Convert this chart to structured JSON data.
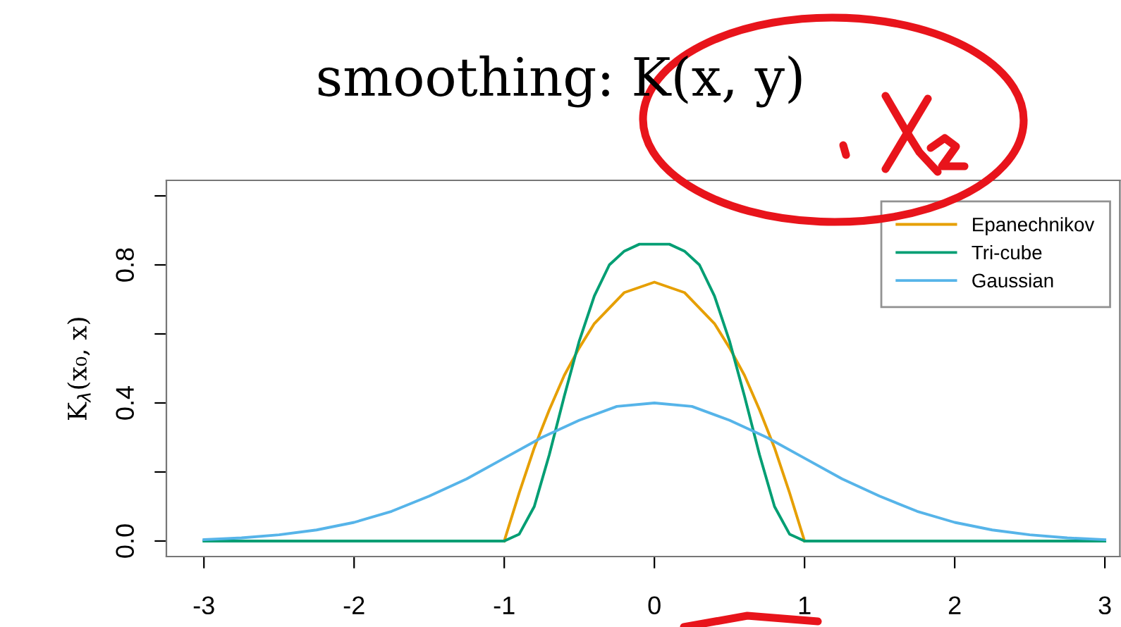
{
  "chart_data": {
    "type": "line",
    "title": "smoothing: K(x, y)",
    "ylabel": "K$_{λ}$(x₀, x)",
    "xlim": [
      -3.25,
      3.1
    ],
    "xticks": [
      -3,
      -2,
      -1,
      0,
      1,
      2,
      3
    ],
    "ylim": [
      -0.045,
      1.045
    ],
    "yticks": [
      {
        "value": 0,
        "label": "0.0"
      },
      {
        "value": 0.2,
        "label": null
      },
      {
        "value": 0.4,
        "label": "0.4"
      },
      {
        "value": 0.6,
        "label": null
      },
      {
        "value": 0.8,
        "label": "0.8"
      },
      {
        "value": 1.0,
        "label": null
      }
    ],
    "grid": false,
    "legend": "top right",
    "marker": "none",
    "line_style": "solid",
    "series": [
      {
        "name": "Epanechnikov",
        "color": "#e69f00",
        "x": [
          -1,
          -0.9,
          -0.8,
          -0.7,
          -0.6,
          -0.5,
          -0.4,
          -0.2,
          0,
          0.2,
          0.4,
          0.5,
          0.6,
          0.7,
          0.8,
          0.9,
          1
        ],
        "values": [
          0,
          0.14,
          0.27,
          0.38,
          0.48,
          0.56,
          0.63,
          0.72,
          0.75,
          0.72,
          0.63,
          0.56,
          0.48,
          0.38,
          0.27,
          0.14,
          0
        ]
      },
      {
        "name": "Tri-cube",
        "color": "#009e73",
        "x": [
          -3,
          -1,
          -0.9,
          -0.8,
          -0.7,
          -0.6,
          -0.5,
          -0.4,
          -0.3,
          -0.2,
          -0.1,
          0,
          0.1,
          0.2,
          0.3,
          0.4,
          0.5,
          0.6,
          0.7,
          0.8,
          0.9,
          1,
          3
        ],
        "values": [
          0,
          0,
          0.02,
          0.1,
          0.25,
          0.42,
          0.58,
          0.71,
          0.8,
          0.84,
          0.86,
          0.86,
          0.86,
          0.84,
          0.8,
          0.71,
          0.58,
          0.42,
          0.25,
          0.1,
          0.02,
          0,
          0
        ]
      },
      {
        "name": "Gaussian",
        "color": "#56b4e9",
        "x": [
          -3,
          -2.75,
          -2.5,
          -2.25,
          -2,
          -1.75,
          -1.5,
          -1.25,
          -1,
          -0.75,
          -0.5,
          -0.25,
          0,
          0.25,
          0.5,
          0.75,
          1,
          1.25,
          1.5,
          1.75,
          2,
          2.25,
          2.5,
          2.75,
          3
        ],
        "values": [
          0.004,
          0.009,
          0.018,
          0.032,
          0.054,
          0.086,
          0.13,
          0.18,
          0.24,
          0.3,
          0.35,
          0.39,
          0.4,
          0.39,
          0.35,
          0.3,
          0.24,
          0.18,
          0.13,
          0.086,
          0.054,
          0.032,
          0.018,
          0.009,
          0.004
        ]
      }
    ]
  }
}
